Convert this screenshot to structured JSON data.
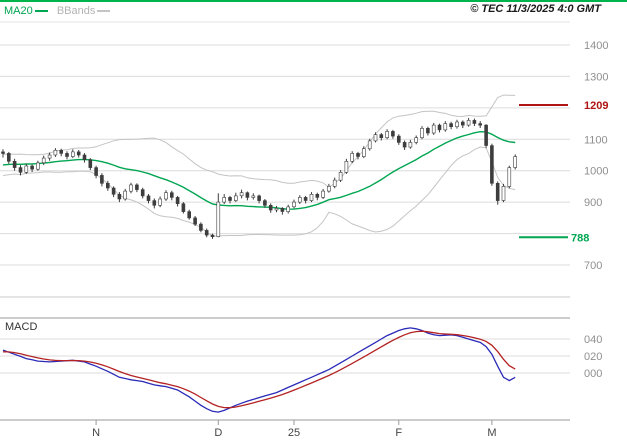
{
  "header": {
    "legend": {
      "ma20": "MA20",
      "bbands": "BBands"
    },
    "copyright": "© TEC 11/3/2025 4:0 GMT"
  },
  "price_panel": {
    "axis_labels": [
      1400,
      1300,
      1100,
      1000,
      900,
      700
    ],
    "alerts": [
      {
        "label": "1209",
        "value": 1209,
        "color": "#b01414"
      },
      {
        "label": "788",
        "value": 788,
        "color": "#00a651"
      }
    ]
  },
  "macd_panel": {
    "label": "MACD",
    "axis_labels": [
      {
        "text": "040",
        "value": 0.4
      },
      {
        "text": "020",
        "value": 0.2
      },
      {
        "text": "000",
        "value": 0.0
      }
    ]
  },
  "colors": {
    "top_border": "#00b44c",
    "grid": "#dcdcdc",
    "axis_text": "#8f8f8f",
    "tick_text": "#444444",
    "candle": "#3d3d3d",
    "ma20": "#00a651",
    "bband": "#c4c4c4",
    "macd_line": "#2a2ab8",
    "macd_signal": "#b42222",
    "divider_light": "#c9c9c9",
    "divider_dark": "#9a9a9a"
  },
  "chart_data": {
    "type": "candlestick",
    "title": "",
    "y_axis": {
      "gridlines": [
        1400,
        1300,
        1200,
        1100,
        1000,
        900,
        800,
        700
      ],
      "range": [
        600,
        1470
      ]
    },
    "x_ticks": [
      {
        "label": "N",
        "i": 16
      },
      {
        "label": "D",
        "i": 37
      },
      {
        "label": "25",
        "i": 50
      },
      {
        "label": "F",
        "i": 68
      },
      {
        "label": "M",
        "i": 84
      }
    ],
    "overlays": [
      "MA20",
      "BBands"
    ],
    "pre_close": [
      1000,
      995,
      1005,
      990,
      1000,
      1010,
      1005,
      1015,
      1010,
      1020,
      1015,
      1025,
      1020,
      1030,
      1025,
      1035,
      1030,
      1040,
      1045
    ],
    "ohlc": [
      [
        1060,
        1068,
        1042,
        1055
      ],
      [
        1055,
        1060,
        1022,
        1030
      ],
      [
        1030,
        1038,
        1000,
        1010
      ],
      [
        1010,
        1018,
        985,
        995
      ],
      [
        995,
        1022,
        990,
        1015
      ],
      [
        1015,
        1020,
        996,
        1005
      ],
      [
        1005,
        1032,
        1000,
        1025
      ],
      [
        1025,
        1048,
        1018,
        1040
      ],
      [
        1040,
        1058,
        1032,
        1050
      ],
      [
        1050,
        1072,
        1044,
        1065
      ],
      [
        1065,
        1070,
        1046,
        1055
      ],
      [
        1055,
        1062,
        1036,
        1045
      ],
      [
        1045,
        1068,
        1040,
        1060
      ],
      [
        1060,
        1066,
        1042,
        1050
      ],
      [
        1050,
        1056,
        1026,
        1035
      ],
      [
        1035,
        1040,
        1002,
        1010
      ],
      [
        1010,
        1016,
        976,
        985
      ],
      [
        985,
        992,
        950,
        960
      ],
      [
        960,
        968,
        936,
        945
      ],
      [
        945,
        950,
        916,
        925
      ],
      [
        925,
        932,
        900,
        910
      ],
      [
        910,
        942,
        905,
        935
      ],
      [
        935,
        962,
        928,
        955
      ],
      [
        955,
        960,
        932,
        940
      ],
      [
        940,
        946,
        912,
        920
      ],
      [
        920,
        926,
        896,
        905
      ],
      [
        905,
        912,
        880,
        890
      ],
      [
        890,
        918,
        884,
        910
      ],
      [
        910,
        938,
        904,
        930
      ],
      [
        930,
        936,
        906,
        915
      ],
      [
        915,
        920,
        886,
        895
      ],
      [
        895,
        900,
        864,
        870
      ],
      [
        870,
        876,
        844,
        850
      ],
      [
        850,
        856,
        824,
        830
      ],
      [
        830,
        836,
        804,
        810
      ],
      [
        810,
        816,
        788,
        795
      ],
      [
        795,
        800,
        783,
        790
      ],
      [
        790,
        928,
        788,
        900
      ],
      [
        900,
        926,
        894,
        915
      ],
      [
        915,
        920,
        896,
        905
      ],
      [
        905,
        930,
        900,
        920
      ],
      [
        920,
        940,
        912,
        930
      ],
      [
        930,
        934,
        906,
        915
      ],
      [
        915,
        928,
        908,
        920
      ],
      [
        920,
        924,
        896,
        905
      ],
      [
        905,
        910,
        882,
        890
      ],
      [
        890,
        896,
        866,
        875
      ],
      [
        875,
        888,
        868,
        880
      ],
      [
        880,
        884,
        860,
        870
      ],
      [
        870,
        892,
        864,
        885
      ],
      [
        885,
        908,
        880,
        900
      ],
      [
        900,
        922,
        894,
        915
      ],
      [
        915,
        920,
        896,
        905
      ],
      [
        905,
        932,
        900,
        925
      ],
      [
        925,
        930,
        906,
        915
      ],
      [
        915,
        942,
        910,
        935
      ],
      [
        935,
        958,
        930,
        950
      ],
      [
        950,
        978,
        944,
        970
      ],
      [
        970,
        1002,
        964,
        995
      ],
      [
        995,
        1038,
        990,
        1030
      ],
      [
        1030,
        1062,
        1024,
        1055
      ],
      [
        1055,
        1060,
        1036,
        1045
      ],
      [
        1045,
        1078,
        1040,
        1070
      ],
      [
        1070,
        1102,
        1064,
        1095
      ],
      [
        1095,
        1122,
        1090,
        1115
      ],
      [
        1115,
        1120,
        1096,
        1105
      ],
      [
        1105,
        1132,
        1100,
        1125
      ],
      [
        1125,
        1130,
        1102,
        1110
      ],
      [
        1110,
        1116,
        1082,
        1090
      ],
      [
        1090,
        1096,
        1066,
        1075
      ],
      [
        1075,
        1098,
        1070,
        1090
      ],
      [
        1090,
        1112,
        1084,
        1105
      ],
      [
        1105,
        1142,
        1100,
        1135
      ],
      [
        1135,
        1140,
        1112,
        1120
      ],
      [
        1120,
        1152,
        1114,
        1145
      ],
      [
        1145,
        1150,
        1122,
        1130
      ],
      [
        1130,
        1158,
        1124,
        1150
      ],
      [
        1150,
        1156,
        1132,
        1140
      ],
      [
        1140,
        1162,
        1134,
        1155
      ],
      [
        1155,
        1160,
        1136,
        1145
      ],
      [
        1145,
        1168,
        1140,
        1160
      ],
      [
        1160,
        1166,
        1142,
        1150
      ],
      [
        1150,
        1158,
        1136,
        1145
      ],
      [
        1145,
        1148,
        1072,
        1080
      ],
      [
        1080,
        1086,
        952,
        960
      ],
      [
        960,
        966,
        892,
        905
      ],
      [
        905,
        958,
        900,
        950
      ],
      [
        950,
        1016,
        944,
        1010
      ],
      [
        1010,
        1052,
        1004,
        1045
      ]
    ],
    "macd": {
      "values": [
        0.27,
        0.245,
        0.22,
        0.195,
        0.17,
        0.155,
        0.14,
        0.135,
        0.13,
        0.135,
        0.14,
        0.145,
        0.15,
        0.14,
        0.13,
        0.105,
        0.08,
        0.05,
        0.02,
        -0.015,
        -0.05,
        -0.065,
        -0.08,
        -0.09,
        -0.1,
        -0.12,
        -0.14,
        -0.15,
        -0.16,
        -0.18,
        -0.2,
        -0.24,
        -0.28,
        -0.33,
        -0.38,
        -0.42,
        -0.45,
        -0.46,
        -0.44,
        -0.41,
        -0.38,
        -0.355,
        -0.33,
        -0.31,
        -0.29,
        -0.27,
        -0.25,
        -0.23,
        -0.2,
        -0.17,
        -0.14,
        -0.11,
        -0.08,
        -0.05,
        -0.02,
        0.01,
        0.04,
        0.08,
        0.12,
        0.16,
        0.2,
        0.24,
        0.28,
        0.32,
        0.36,
        0.4,
        0.44,
        0.47,
        0.5,
        0.52,
        0.53,
        0.52,
        0.5,
        0.47,
        0.45,
        0.44,
        0.445,
        0.45,
        0.44,
        0.42,
        0.4,
        0.38,
        0.36,
        0.31,
        0.22,
        0.08,
        -0.05,
        -0.09,
        -0.05
      ],
      "signal_alpha": 0.3,
      "signal_seed": 0.24
    }
  }
}
